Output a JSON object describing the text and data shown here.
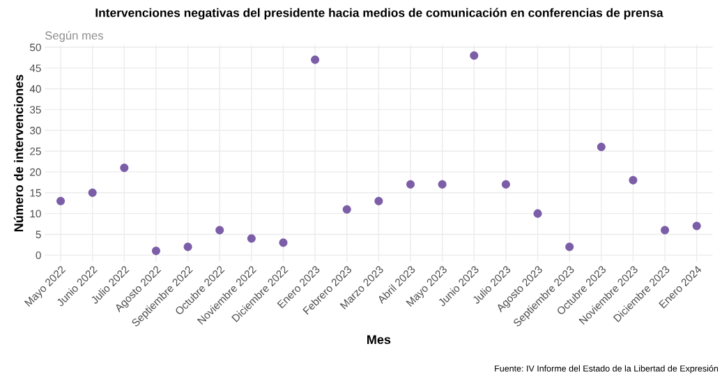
{
  "chart_data": {
    "type": "scatter",
    "title": "Intervenciones negativas del presidente hacia medios de comunicación en conferencias de prensa",
    "subtitle": "Según mes",
    "xlabel": "Mes",
    "ylabel": "Número de intervenciones",
    "annotations": [
      "Fuente: IV Informe del Estado de la Libertad de Expresión"
    ],
    "categories": [
      "Mayo 2022",
      "Junio 2022",
      "Julio 2022",
      "Agosto 2022",
      "Septiembre 2022",
      "Octubre 2022",
      "Noviembre 2022",
      "Diciembre 2022",
      "Enero 2023",
      "Febrero 2023",
      "Marzo 2023",
      "Abril 2023",
      "Mayo 2023",
      "Junio 2023",
      "Julio 2023",
      "Agosto 2023",
      "Septiembre 2023",
      "Octubre 2023",
      "Noviembre 2023",
      "Diciembre 2023",
      "Enero 2024"
    ],
    "values": [
      13,
      15,
      21,
      1,
      2,
      6,
      4,
      3,
      47,
      11,
      13,
      17,
      17,
      48,
      17,
      10,
      2,
      26,
      18,
      6,
      7
    ],
    "color": "#7b5ea7",
    "marker": "circle",
    "ylim": [
      -1.5,
      50.5
    ],
    "yticks": [
      0,
      5,
      10,
      15,
      20,
      25,
      30,
      35,
      40,
      45,
      50
    ],
    "grid": true,
    "legend": false
  }
}
